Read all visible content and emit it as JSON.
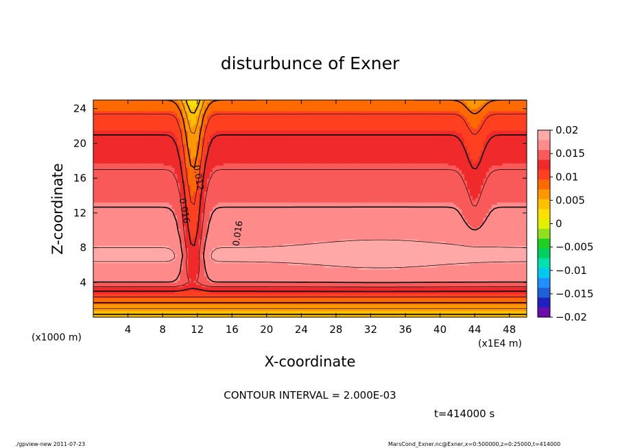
{
  "chart_data": {
    "type": "heatmap",
    "title": "disturbunce of Exner",
    "xlabel": "X-coordinate",
    "ylabel": "Z-coordinate",
    "x_unit_label": "(x1E4 m)",
    "y_unit_label": "(x1000 m)",
    "xlim": [
      0,
      50
    ],
    "ylim": [
      0,
      25
    ],
    "x_ticks": [
      4,
      8,
      12,
      16,
      20,
      24,
      28,
      32,
      36,
      40,
      44,
      48
    ],
    "y_ticks": [
      4,
      8,
      12,
      16,
      20,
      24
    ],
    "colorbar": {
      "min": -0.02,
      "max": 0.02,
      "tick_values": [
        0.02,
        0.015,
        0.01,
        0.005,
        0,
        -0.005,
        -0.01,
        -0.015,
        -0.02
      ],
      "tick_labels": [
        "0.02",
        "0.015",
        "0.01",
        "0.005",
        "0",
        "−0.005",
        "−0.01",
        "−0.015",
        "−0.02"
      ],
      "colors": [
        "#6a0dad",
        "#2020c0",
        "#1f5fd8",
        "#1e90ff",
        "#00c8f0",
        "#00e0b0",
        "#00d060",
        "#20d020",
        "#90e020",
        "#e0f000",
        "#ffe000",
        "#ffc000",
        "#ff9800",
        "#ff6a00",
        "#ff4020",
        "#f02a2a",
        "#f85a5a",
        "#ff8a8a",
        "#ffa8a8"
      ]
    },
    "contour_labels": [
      "0.012",
      "0.016",
      "0.016"
    ],
    "contour_levels_drawn": [
      0.004,
      0.006,
      0.008,
      0.01,
      0.012,
      0.014,
      0.016,
      0.018
    ],
    "field_profile_by_z": [
      {
        "z": 0,
        "value": 0.003
      },
      {
        "z": 1,
        "value": 0.006
      },
      {
        "z": 2,
        "value": 0.009
      },
      {
        "z": 3,
        "value": 0.012
      },
      {
        "z": 4,
        "value": 0.016
      },
      {
        "z": 7,
        "value": 0.0185
      },
      {
        "z": 10,
        "value": 0.017
      },
      {
        "z": 14,
        "value": 0.0155
      },
      {
        "z": 17,
        "value": 0.014
      },
      {
        "z": 21,
        "value": 0.012
      },
      {
        "z": 23,
        "value": 0.0105
      },
      {
        "z": 25,
        "value": 0.008
      }
    ],
    "features": [
      {
        "x": 11.5,
        "description": "low trough"
      },
      {
        "x": 44,
        "description": "dip"
      }
    ]
  },
  "annotations": {
    "contour_interval": "CONTOUR INTERVAL = 2.000E-03",
    "time": "t=414000 s",
    "footer_left": "./gpview-new   2011-07-23",
    "footer_right": "MarsCond_Exner.nc@Exner,x=0:500000,z=0:25000,t=414000"
  }
}
